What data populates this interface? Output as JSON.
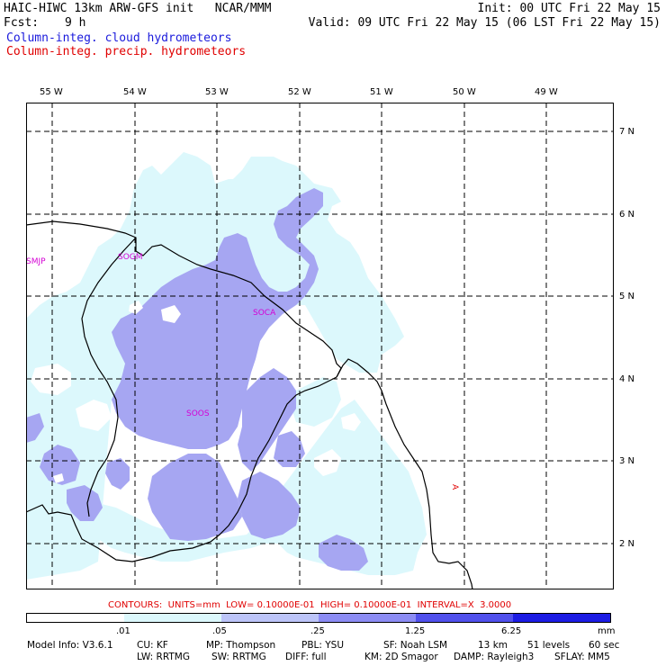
{
  "header": {
    "title": "HAIC-HIWC 13km ARW-GFS init   NCAR/MMM",
    "fcst_label": "Fcst:",
    "fcst_value": "9 h",
    "init": "Init: 00 UTC Fri 22 May 15",
    "valid": "Valid: 09 UTC Fri 22 May 15 (06 LST Fri 22 May 15)",
    "field_cloud": "Column-integ. cloud hydrometeors",
    "field_precip": "Column-integ. precip. hydrometeors"
  },
  "map": {
    "lon_labels": [
      "55 W",
      "54 W",
      "53 W",
      "52 W",
      "51 W",
      "50 W",
      "49 W"
    ],
    "lat_labels": [
      "7 N",
      "6 N",
      "5 N",
      "4 N",
      "3 N",
      "2 N"
    ],
    "stations": [
      "SMJP",
      "SOGM",
      "SOCA",
      "SOOS"
    ],
    "marker": "A",
    "colors": {
      "light": "#dcf8fc",
      "medium": "#a6a6f2",
      "land_line": "#000000",
      "station": "#d400d4"
    }
  },
  "legend": {
    "contours_text": "CONTOURS:  UNITS=mm  LOW= 0.10000E-01  HIGH= 0.10000E-01  INTERVAL=X  3.0000",
    "thresholds": [
      ".01",
      ".05",
      ".25",
      "1.25",
      "6.25"
    ],
    "units": "mm",
    "colors": [
      "#ffffff",
      "#dcf8fc",
      "#bcc4f8",
      "#8c8cf4",
      "#5050ec",
      "#1c1ce4"
    ]
  },
  "model_info": {
    "line1": [
      "Model Info: V3.6.1",
      "CU: KF",
      "MP: Thompson",
      "PBL: YSU",
      "SF: Noah LSM",
      "13 km",
      "51 levels",
      "60 sec"
    ],
    "line2": [
      "LW: RRTMG",
      "SW: RRTMG",
      "DIFF: full",
      "KM: 2D Smagor",
      "DAMP: Rayleigh3",
      "SFLAY: MM5"
    ]
  }
}
